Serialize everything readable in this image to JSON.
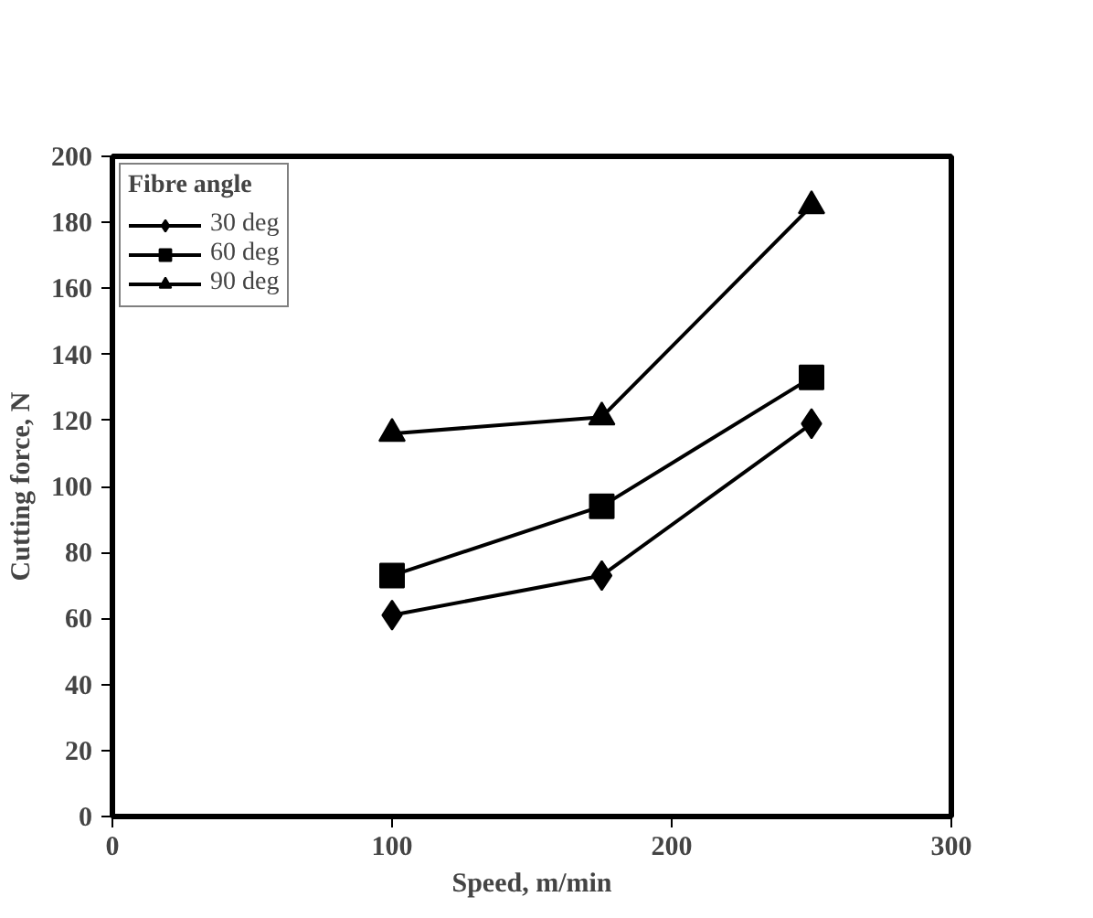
{
  "chart_data": {
    "type": "line",
    "xlabel": "Speed, m/min",
    "ylabel": "Cutting force, N",
    "legend_title": "Fibre angle",
    "x": [
      100,
      175,
      250
    ],
    "series": [
      {
        "name": "30 deg",
        "color": "#000000",
        "marker": "diamond",
        "values": [
          61,
          73,
          119
        ]
      },
      {
        "name": "60 deg",
        "color": "#000000",
        "marker": "square",
        "values": [
          73,
          94,
          133
        ]
      },
      {
        "name": "90 deg",
        "color": "#000000",
        "marker": "triangle",
        "values": [
          116,
          121,
          185
        ]
      }
    ],
    "xlim": [
      0,
      300
    ],
    "xticks": [
      0,
      100,
      200,
      300
    ],
    "ylim": [
      0,
      200
    ],
    "yticks": [
      0,
      20,
      40,
      60,
      80,
      100,
      120,
      140,
      160,
      180,
      200
    ],
    "grid": false,
    "legend": "top left",
    "line_style": "solid"
  }
}
